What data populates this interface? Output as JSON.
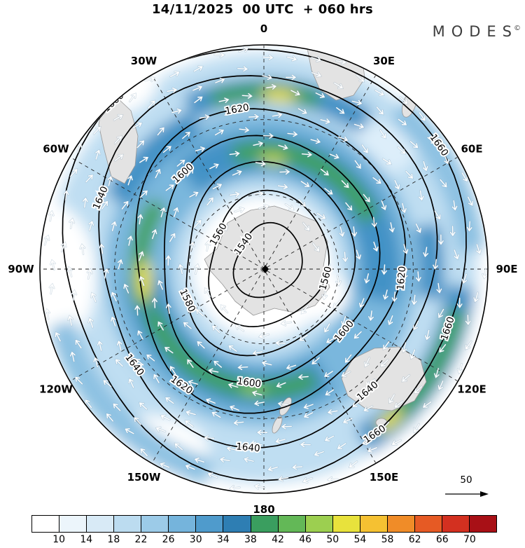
{
  "header": {
    "title": "14/11/2025  00 UTC  + 060 hrs",
    "brand": "MODES",
    "brand_sup": "©"
  },
  "chart_data": {
    "type": "heatmap",
    "title": "14/11/2025 00 UTC + 060 hrs",
    "description": "Southern-hemisphere polar stereographic chart: shaded wind-speed field, black height contours (1540-1660), white wind-direction arrows, longitude ring labels, bottom color scale 10-70 and reference arrow 50.",
    "contour_levels": [
      1540,
      1560,
      1580,
      1600,
      1620,
      1640,
      1660
    ],
    "contour_interval": 20,
    "longitude_labels": [
      "0",
      "30E",
      "60E",
      "90E",
      "120E",
      "150E",
      "180",
      "150W",
      "120W",
      "90W",
      "60W",
      "30W"
    ],
    "colorbar": {
      "ticks": [
        10,
        14,
        18,
        22,
        26,
        30,
        34,
        38,
        42,
        46,
        50,
        54,
        58,
        62,
        66,
        70
      ],
      "colors": [
        "#ffffff",
        "#ecf5fb",
        "#d8eaf6",
        "#bcdcf0",
        "#9ccbe8",
        "#75b4dc",
        "#4f9bcc",
        "#2e7eb3",
        "#3a9e5f",
        "#63b857",
        "#9ccf50",
        "#e8e23c",
        "#f5c132",
        "#f08c28",
        "#e65a24",
        "#d33020",
        "#a81016"
      ]
    },
    "wind_reference": {
      "label": "50"
    }
  }
}
